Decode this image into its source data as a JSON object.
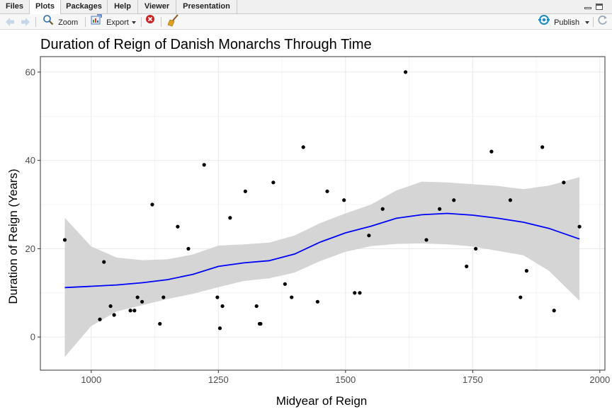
{
  "tabs": [
    {
      "label": "Files"
    },
    {
      "label": "Plots"
    },
    {
      "label": "Packages"
    },
    {
      "label": "Help"
    },
    {
      "label": "Viewer"
    },
    {
      "label": "Presentation"
    }
  ],
  "active_tab": "Plots",
  "toolbar": {
    "zoom_label": "Zoom",
    "export_label": "Export",
    "publish_label": "Publish",
    "icons": [
      "back-arrow-icon",
      "forward-arrow-icon",
      "zoom-icon",
      "export-icon",
      "remove-plot-icon",
      "broom-icon",
      "publish-icon",
      "refresh-icon"
    ]
  },
  "colors": {
    "line": "#0000ff",
    "band": "#d3d3d3",
    "points": "#000000",
    "grid": "#ebebeb",
    "publish_accent": "#1a8cc8",
    "remove_red": "#cc2222"
  },
  "chart_data": {
    "type": "scatter",
    "title": "Duration of Reign of Danish Monarchs Through Time",
    "xlabel": "Midyear of Reign",
    "ylabel": "Duration of Reign (Years)",
    "xlim": [
      900,
      2010
    ],
    "ylim": [
      -7.5,
      63.5
    ],
    "x_ticks": [
      1000,
      1250,
      1500,
      1750,
      2000
    ],
    "x_tick_labels": [
      "1000",
      "1250",
      "1500",
      "1750",
      "2000"
    ],
    "y_ticks": [
      0,
      20,
      40,
      60
    ],
    "y_tick_labels": [
      "0",
      "20",
      "40",
      "60"
    ],
    "grid": true,
    "points": [
      {
        "x": 948,
        "y": 22
      },
      {
        "x": 1017,
        "y": 4
      },
      {
        "x": 1025,
        "y": 17
      },
      {
        "x": 1038,
        "y": 7
      },
      {
        "x": 1045,
        "y": 5
      },
      {
        "x": 1077,
        "y": 6
      },
      {
        "x": 1085,
        "y": 6
      },
      {
        "x": 1091,
        "y": 9
      },
      {
        "x": 1100,
        "y": 8
      },
      {
        "x": 1120,
        "y": 30
      },
      {
        "x": 1135,
        "y": 3
      },
      {
        "x": 1142,
        "y": 9
      },
      {
        "x": 1170,
        "y": 25
      },
      {
        "x": 1191,
        "y": 20
      },
      {
        "x": 1222,
        "y": 39
      },
      {
        "x": 1248,
        "y": 9
      },
      {
        "x": 1253,
        "y": 2
      },
      {
        "x": 1258,
        "y": 7
      },
      {
        "x": 1273,
        "y": 27
      },
      {
        "x": 1303,
        "y": 33
      },
      {
        "x": 1325,
        "y": 7
      },
      {
        "x": 1331,
        "y": 3
      },
      {
        "x": 1333,
        "y": 3
      },
      {
        "x": 1358,
        "y": 35
      },
      {
        "x": 1381,
        "y": 12
      },
      {
        "x": 1394,
        "y": 9
      },
      {
        "x": 1417,
        "y": 43
      },
      {
        "x": 1445,
        "y": 8
      },
      {
        "x": 1464,
        "y": 33
      },
      {
        "x": 1497,
        "y": 31
      },
      {
        "x": 1518,
        "y": 10
      },
      {
        "x": 1528,
        "y": 10
      },
      {
        "x": 1546,
        "y": 23
      },
      {
        "x": 1573,
        "y": 29
      },
      {
        "x": 1618,
        "y": 60
      },
      {
        "x": 1659,
        "y": 22
      },
      {
        "x": 1685,
        "y": 29
      },
      {
        "x": 1713,
        "y": 31
      },
      {
        "x": 1738,
        "y": 16
      },
      {
        "x": 1756,
        "y": 20
      },
      {
        "x": 1787,
        "y": 42
      },
      {
        "x": 1824,
        "y": 31
      },
      {
        "x": 1844,
        "y": 9
      },
      {
        "x": 1856,
        "y": 15
      },
      {
        "x": 1887,
        "y": 43
      },
      {
        "x": 1910,
        "y": 6
      },
      {
        "x": 1929,
        "y": 35
      },
      {
        "x": 1960,
        "y": 25
      }
    ],
    "smooth": {
      "x": [
        948,
        1000,
        1050,
        1100,
        1150,
        1200,
        1250,
        1300,
        1350,
        1400,
        1450,
        1500,
        1550,
        1600,
        1650,
        1700,
        1750,
        1800,
        1850,
        1900,
        1960
      ],
      "y": [
        11.2,
        11.5,
        11.8,
        12.3,
        13.0,
        14.2,
        16.0,
        16.8,
        17.3,
        18.8,
        21.5,
        23.6,
        25.1,
        26.9,
        27.7,
        28.0,
        27.6,
        26.9,
        26.0,
        24.6,
        22.2
      ],
      "lower": [
        -4.5,
        2.5,
        5.8,
        7.2,
        8.6,
        9.8,
        11.3,
        12.7,
        13.3,
        14.6,
        17.2,
        19.3,
        20.6,
        21.1,
        21.2,
        21.0,
        20.5,
        19.5,
        18.5,
        15.0,
        8.2
      ],
      "upper": [
        27.0,
        20.5,
        18.0,
        17.4,
        17.6,
        18.7,
        20.7,
        21.0,
        21.4,
        23.0,
        25.8,
        28.0,
        30.0,
        33.2,
        35.2,
        35.0,
        34.6,
        34.2,
        33.5,
        34.3,
        36.2
      ]
    }
  }
}
